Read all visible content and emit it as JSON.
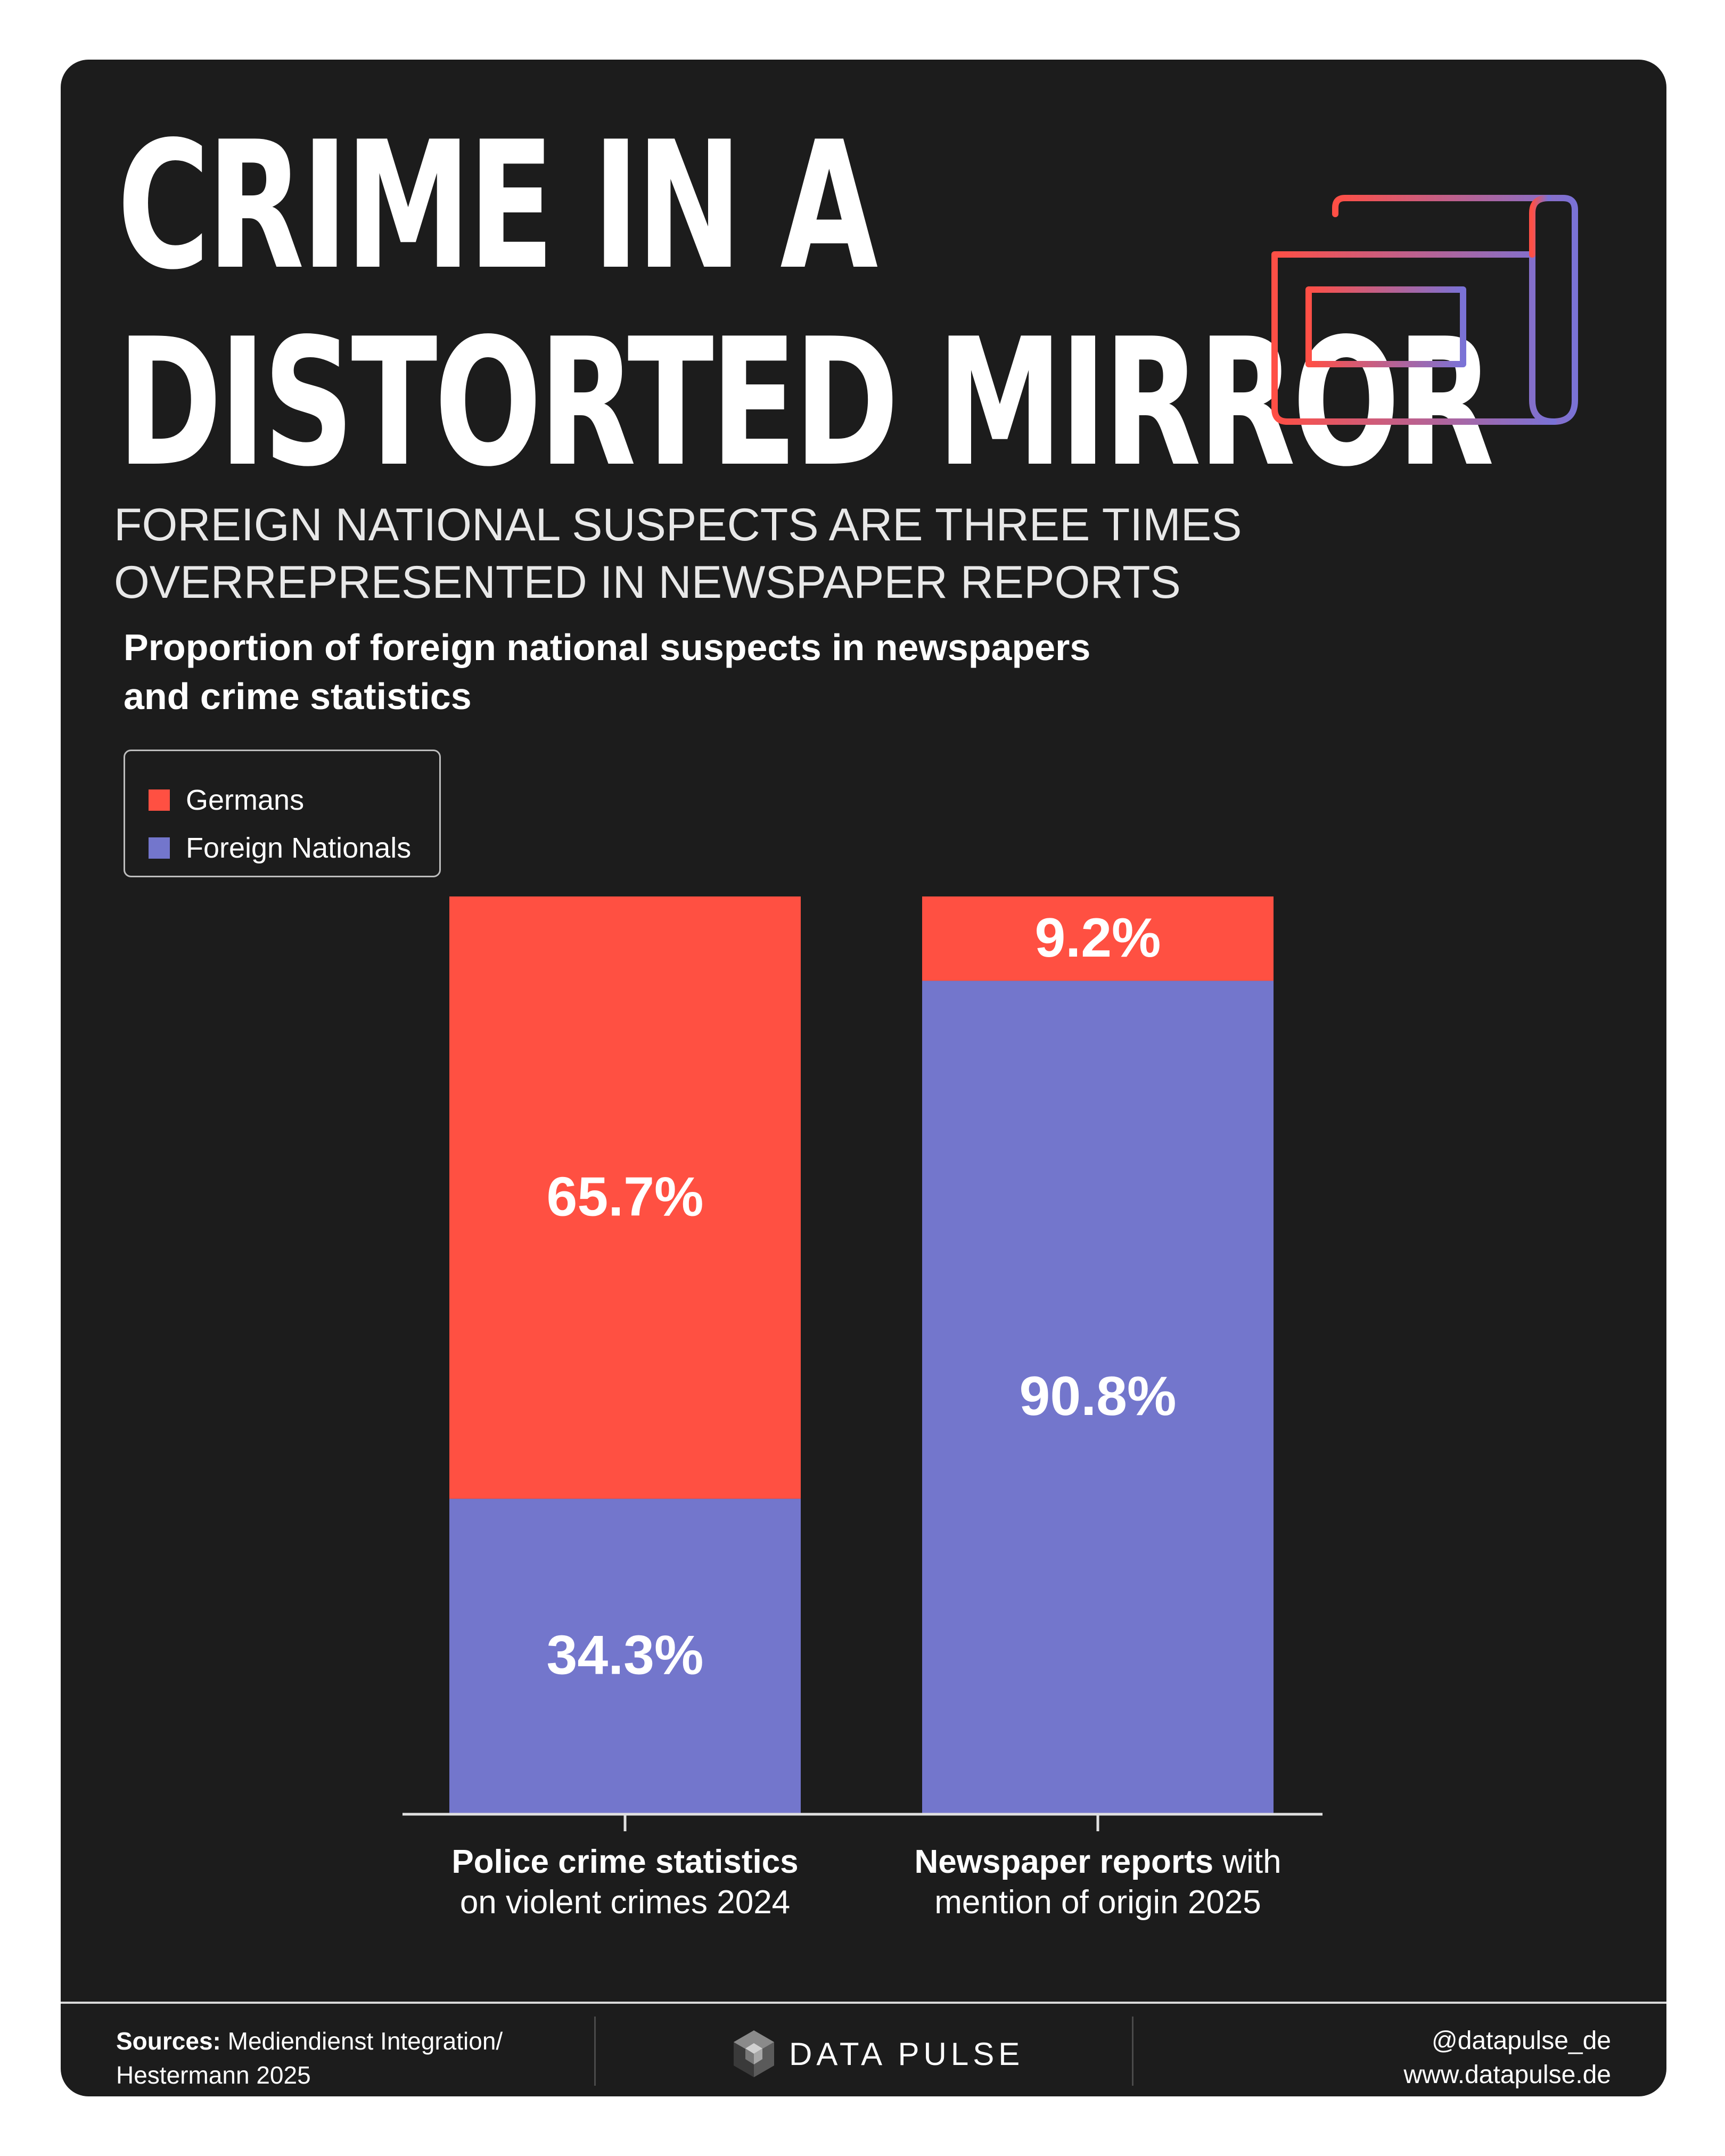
{
  "header": {
    "title_line1": "CRIME IN A",
    "title_line2": "DISTORTED MIRROR",
    "subtitle_line1": "FOREIGN NATIONAL SUSPECTS ARE THREE TIMES",
    "subtitle_line2": "OVERREPRESENTED IN NEWSPAPER REPORTS",
    "icon": "newspaper-icon"
  },
  "colors": {
    "background": "#1c1c1c",
    "germans": "#ff5042",
    "foreign": "#7376cc",
    "text": "#ffffff"
  },
  "chart_data": {
    "type": "bar",
    "stacked": true,
    "title": "Proportion of foreign national suspects in newspapers and crime statistics",
    "title_line1": "Proportion of foreign national suspects in newspapers",
    "title_line2": "and crime statistics",
    "categories": [
      {
        "bold": "Police crime statistics",
        "rest_line1": "",
        "line2": "on violent crimes 2024"
      },
      {
        "bold": "Newspaper reports",
        "rest_line1": " with",
        "line2": "mention of origin 2025"
      }
    ],
    "series": [
      {
        "name": "Germans",
        "color": "#ff5042",
        "values": [
          65.7,
          9.2
        ],
        "labels": [
          "65.7%",
          "9.2%"
        ]
      },
      {
        "name": "Foreign Nationals",
        "color": "#7376cc",
        "values": [
          34.3,
          90.8
        ],
        "labels": [
          "34.3%",
          "90.8%"
        ]
      }
    ],
    "ylim": [
      0,
      100
    ],
    "legend_position": "top-left",
    "grid": false
  },
  "footer": {
    "sources_label": "Sources:",
    "sources_text_line1": " Mediendienst Integration/",
    "sources_text_line2": "Hestermann 2025",
    "brand_name": "DATA PULSE",
    "handle": "@datapulse_de",
    "website": "www.datapulse.de"
  }
}
